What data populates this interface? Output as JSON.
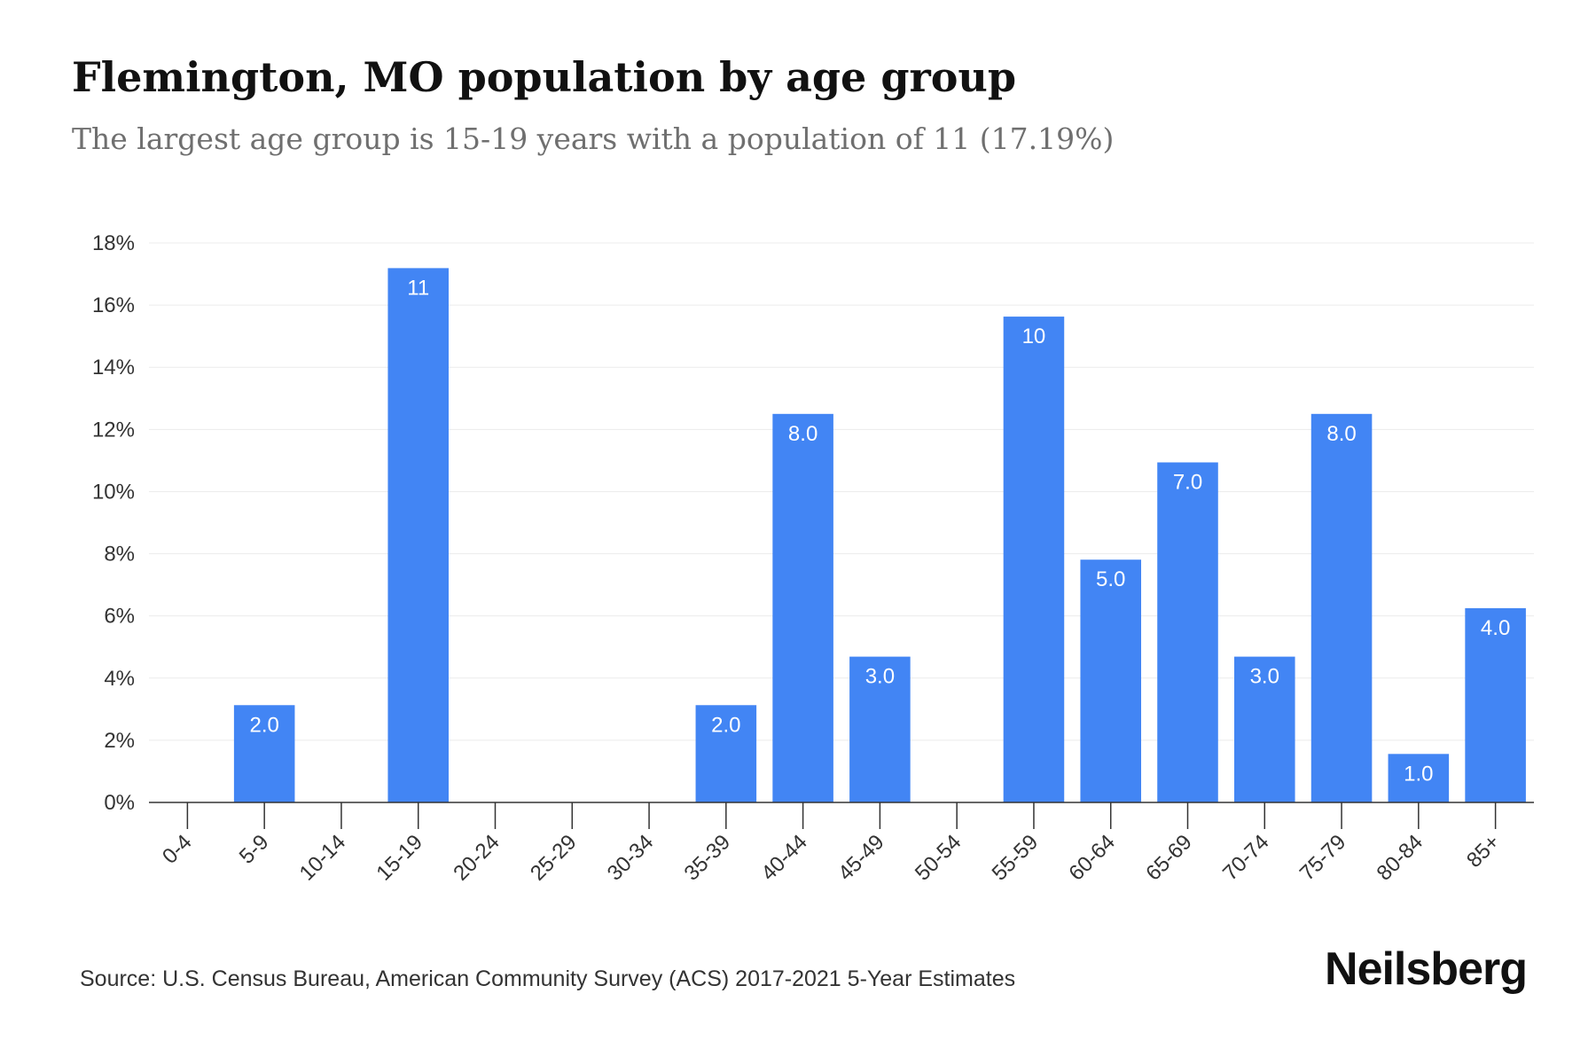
{
  "chart_data": {
    "type": "bar",
    "title": "Flemington, MO population by age group",
    "subtitle": "The largest age group is 15-19 years with a population of 11 (17.19%)",
    "xlabel": "",
    "ylabel": "",
    "categories": [
      "0-4",
      "5-9",
      "10-14",
      "15-19",
      "20-24",
      "25-29",
      "30-34",
      "35-39",
      "40-44",
      "45-49",
      "50-54",
      "55-59",
      "60-64",
      "65-69",
      "70-74",
      "75-79",
      "80-84",
      "85+"
    ],
    "values": [
      0,
      3.13,
      0,
      17.19,
      0,
      0,
      0,
      3.13,
      12.5,
      4.69,
      0,
      15.63,
      7.81,
      10.94,
      4.69,
      12.5,
      1.56,
      6.25
    ],
    "data_labels": [
      "",
      "2.0",
      "",
      "11",
      "",
      "",
      "",
      "2.0",
      "8.0",
      "3.0",
      "",
      "10",
      "5.0",
      "7.0",
      "3.0",
      "8.0",
      "1.0",
      "4.0"
    ],
    "ylim": [
      0,
      18
    ],
    "yticks": [
      0,
      2,
      4,
      6,
      8,
      10,
      12,
      14,
      16,
      18
    ],
    "ytick_labels": [
      "0%",
      "2%",
      "4%",
      "6%",
      "8%",
      "10%",
      "12%",
      "14%",
      "16%",
      "18%"
    ],
    "bar_color": "#4285f4",
    "grid": true,
    "legend": "none"
  },
  "footer": {
    "source": "Source: U.S. Census Bureau, American Community Survey (ACS) 2017-2021 5-Year Estimates",
    "logo": "Neilsberg"
  }
}
